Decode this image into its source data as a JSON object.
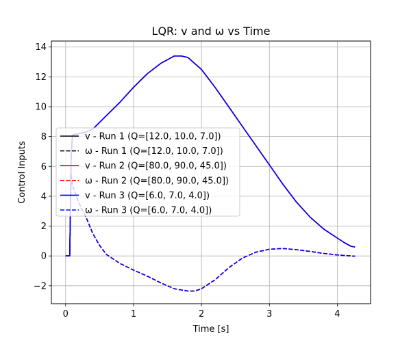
{
  "chart_data": {
    "type": "line",
    "title": "LQR: v and ω vs Time",
    "xlabel": "Time [s]",
    "ylabel": "Control Inputs",
    "xlim": [
      -0.21,
      4.49
    ],
    "ylim": [
      -3.2,
      14.4
    ],
    "xticks": [
      0,
      1,
      2,
      3,
      4
    ],
    "yticks": [
      -2,
      0,
      2,
      4,
      6,
      8,
      10,
      12,
      14
    ],
    "grid": true,
    "legend_position": "center-left",
    "series": [
      {
        "name": "v - Run 1 (Q=[12.0, 10.0, 7.0])",
        "color": "#000000",
        "dash": "solid",
        "variable": "v",
        "x": [
          0,
          0.06,
          0.08,
          0.1,
          0.2,
          0.3,
          0.4,
          0.6,
          0.8,
          1.0,
          1.2,
          1.4,
          1.6,
          1.7,
          1.8,
          2.0,
          2.2,
          2.4,
          2.6,
          2.8,
          3.0,
          3.2,
          3.4,
          3.6,
          3.8,
          4.0,
          4.1,
          4.2,
          4.26
        ],
        "y": [
          0,
          0,
          6.5,
          8.1,
          8.2,
          8.3,
          8.5,
          9.4,
          10.3,
          11.3,
          12.2,
          12.9,
          13.4,
          13.4,
          13.3,
          12.5,
          11.3,
          10.0,
          8.7,
          7.4,
          6.1,
          4.8,
          3.6,
          2.6,
          1.8,
          1.2,
          0.9,
          0.65,
          0.6
        ]
      },
      {
        "name": "ω - Run 1 (Q=[12.0, 10.0, 7.0])",
        "color": "#000000",
        "dash": "dashed",
        "variable": "omega",
        "x": [
          0,
          0.06,
          0.08,
          0.1,
          0.2,
          0.3,
          0.4,
          0.5,
          0.6,
          0.8,
          1.0,
          1.2,
          1.4,
          1.6,
          1.8,
          1.9,
          2.0,
          2.2,
          2.4,
          2.6,
          2.8,
          3.0,
          3.2,
          3.4,
          3.6,
          3.8,
          4.0,
          4.2,
          4.26
        ],
        "y": [
          0,
          0,
          5.5,
          4.7,
          3.5,
          2.6,
          1.5,
          0.7,
          0.1,
          -0.5,
          -0.95,
          -1.35,
          -1.8,
          -2.2,
          -2.35,
          -2.35,
          -2.2,
          -1.6,
          -0.8,
          -0.15,
          0.25,
          0.45,
          0.5,
          0.42,
          0.3,
          0.17,
          0.07,
          0.0,
          -0.02
        ]
      },
      {
        "name": "v - Run 2 (Q=[80.0, 90.0, 45.0])",
        "color": "#ff0000",
        "dash": "solid",
        "variable": "v",
        "x": [
          0,
          0.06,
          0.08,
          0.1,
          0.2,
          0.3,
          0.4,
          0.6,
          0.8,
          1.0,
          1.2,
          1.4,
          1.6,
          1.7,
          1.8,
          2.0,
          2.2,
          2.4,
          2.6,
          2.8,
          3.0,
          3.2,
          3.4,
          3.6,
          3.8,
          4.0,
          4.1,
          4.2,
          4.26
        ],
        "y": [
          0,
          0,
          6.5,
          8.1,
          8.2,
          8.3,
          8.5,
          9.4,
          10.3,
          11.3,
          12.2,
          12.9,
          13.4,
          13.4,
          13.3,
          12.5,
          11.3,
          10.0,
          8.7,
          7.4,
          6.1,
          4.8,
          3.6,
          2.6,
          1.8,
          1.2,
          0.9,
          0.65,
          0.6
        ]
      },
      {
        "name": "ω - Run 2 (Q=[80.0, 90.0, 45.0])",
        "color": "#ff0000",
        "dash": "dashed",
        "variable": "omega",
        "x": [
          0,
          0.06,
          0.08,
          0.1,
          0.2,
          0.3,
          0.4,
          0.5,
          0.6,
          0.8,
          1.0,
          1.2,
          1.4,
          1.6,
          1.8,
          1.9,
          2.0,
          2.2,
          2.4,
          2.6,
          2.8,
          3.0,
          3.2,
          3.4,
          3.6,
          3.8,
          4.0,
          4.2,
          4.26
        ],
        "y": [
          0,
          0,
          5.5,
          4.7,
          3.5,
          2.6,
          1.5,
          0.7,
          0.1,
          -0.5,
          -0.95,
          -1.35,
          -1.8,
          -2.2,
          -2.35,
          -2.35,
          -2.2,
          -1.6,
          -0.8,
          -0.15,
          0.25,
          0.45,
          0.5,
          0.42,
          0.3,
          0.17,
          0.07,
          0.0,
          -0.02
        ]
      },
      {
        "name": "v - Run 3 (Q=[6.0, 7.0, 4.0])",
        "color": "#0000ff",
        "dash": "solid",
        "variable": "v",
        "x": [
          0,
          0.06,
          0.08,
          0.1,
          0.2,
          0.3,
          0.4,
          0.6,
          0.8,
          1.0,
          1.2,
          1.4,
          1.6,
          1.7,
          1.8,
          2.0,
          2.2,
          2.4,
          2.6,
          2.8,
          3.0,
          3.2,
          3.4,
          3.6,
          3.8,
          4.0,
          4.1,
          4.2,
          4.26
        ],
        "y": [
          0,
          0,
          6.5,
          8.1,
          8.2,
          8.3,
          8.5,
          9.4,
          10.3,
          11.3,
          12.2,
          12.9,
          13.4,
          13.4,
          13.3,
          12.5,
          11.3,
          10.0,
          8.7,
          7.4,
          6.1,
          4.8,
          3.6,
          2.6,
          1.8,
          1.2,
          0.9,
          0.65,
          0.6
        ]
      },
      {
        "name": "ω - Run 3 (Q=[6.0, 7.0, 4.0])",
        "color": "#0000ff",
        "dash": "dashed",
        "variable": "omega",
        "x": [
          0,
          0.06,
          0.08,
          0.1,
          0.2,
          0.3,
          0.4,
          0.5,
          0.6,
          0.8,
          1.0,
          1.2,
          1.4,
          1.6,
          1.8,
          1.9,
          2.0,
          2.2,
          2.4,
          2.6,
          2.8,
          3.0,
          3.2,
          3.4,
          3.6,
          3.8,
          4.0,
          4.2,
          4.26
        ],
        "y": [
          0,
          0,
          5.5,
          4.7,
          3.5,
          2.6,
          1.5,
          0.7,
          0.1,
          -0.5,
          -0.95,
          -1.35,
          -1.8,
          -2.2,
          -2.35,
          -2.35,
          -2.2,
          -1.6,
          -0.8,
          -0.15,
          0.25,
          0.45,
          0.5,
          0.42,
          0.3,
          0.17,
          0.07,
          0.0,
          -0.02
        ]
      }
    ]
  }
}
